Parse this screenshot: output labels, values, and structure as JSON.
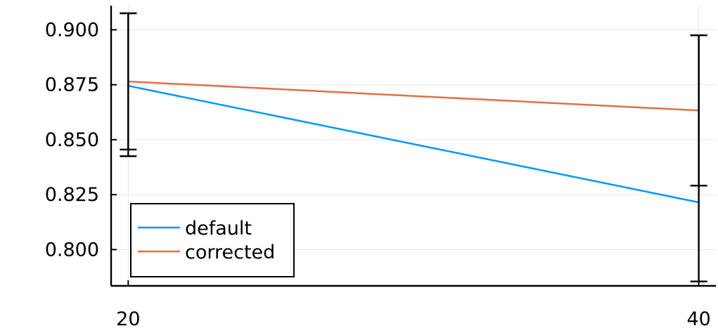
{
  "chart_data": {
    "type": "line",
    "title": "",
    "xlabel": "",
    "ylabel": "",
    "x": [
      20,
      40
    ],
    "xlim": [
      19.4,
      40.6
    ],
    "ylim": [
      0.7835,
      0.911
    ],
    "grid": true,
    "legend_position": "bottom-left",
    "x_ticks": [
      "20",
      "40"
    ],
    "y_ticks": [
      "0.800",
      "0.825",
      "0.850",
      "0.875",
      "0.900"
    ],
    "series": [
      {
        "name": "default",
        "color": "#009AFA",
        "values": [
          0.8745,
          0.8215
        ],
        "error_bars": [
          [
            0.8425,
            0.9075
          ],
          [
            0.7855,
            0.8975
          ]
        ]
      },
      {
        "name": "corrected",
        "color": "#E26F46",
        "values": [
          0.8765,
          0.8633
        ],
        "error_bars": [
          [
            0.8455,
            0.9075
          ],
          [
            0.8291,
            0.8975
          ]
        ]
      }
    ]
  }
}
